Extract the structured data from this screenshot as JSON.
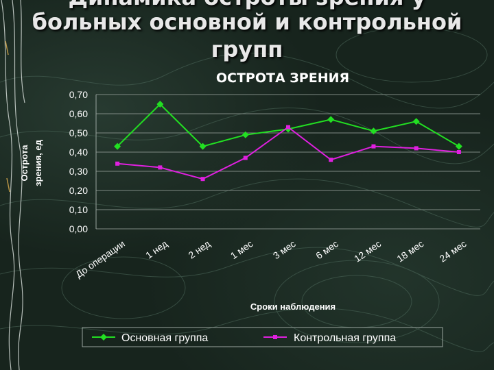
{
  "slide": {
    "title_line1": "Динамика остроты зрения у",
    "title_line2": "больных основной и контрольной",
    "title_line3": "групп"
  },
  "chart_data": {
    "type": "line",
    "title": "ОСТРОТА ЗРЕНИЯ",
    "xlabel": "Сроки наблюдения",
    "ylabel_line1": "Острота",
    "ylabel_line2": "зрения, ед",
    "categories": [
      "До операции",
      "1 нед",
      "2 нед",
      "1 мес",
      "3 мес",
      "6 мес",
      "12 мес",
      "18 мес",
      "24 мес"
    ],
    "series": [
      {
        "name": "Основная группа",
        "color": "#22e022",
        "marker": "diamond",
        "values": [
          0.43,
          0.65,
          0.43,
          0.49,
          0.52,
          0.57,
          0.51,
          0.56,
          0.43
        ]
      },
      {
        "name": "Контрольная группа",
        "color": "#e020e0",
        "marker": "square",
        "values": [
          0.34,
          0.32,
          0.26,
          0.37,
          0.53,
          0.36,
          0.43,
          0.42,
          0.4
        ]
      }
    ],
    "ylim": [
      0,
      0.7
    ],
    "yticks": [
      "0,00",
      "0,10",
      "0,20",
      "0,30",
      "0,40",
      "0,50",
      "0,60",
      "0,70"
    ],
    "grid": true,
    "legend_position": "bottom"
  }
}
